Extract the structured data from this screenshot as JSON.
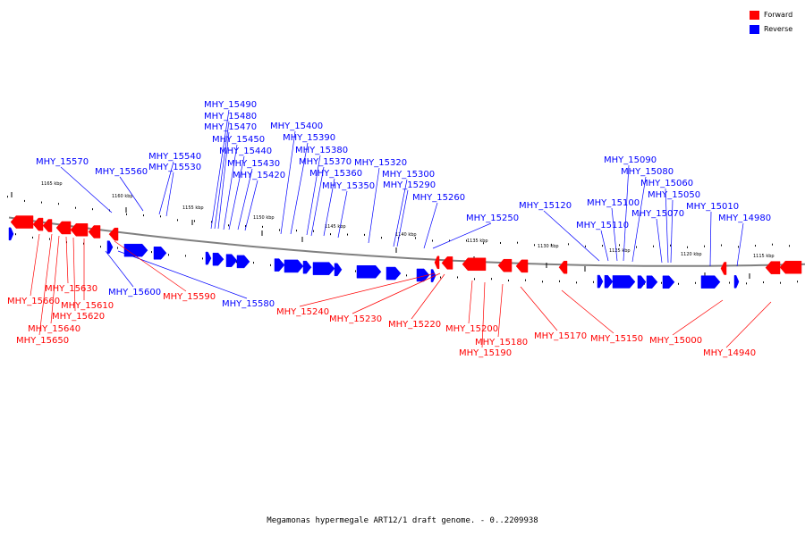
{
  "colors": {
    "forward": "#ff0000",
    "reverse": "#0000ff",
    "backbone": "#808080",
    "tick": "#000000"
  },
  "legend": [
    {
      "label": "Forward",
      "color": "#ff0000"
    },
    {
      "label": "Reverse",
      "color": "#0000ff"
    }
  ],
  "caption": "Megamonas hypermegale ART12/1 draft genome. - 0..2209938",
  "scale_labels": [
    "1165 kbp",
    "1160 kbp",
    "1155 kbp",
    "1150 kbp",
    "1145 kbp",
    "1140 kbp",
    "1135 kbp",
    "1130 kbp",
    "1125 kbp",
    "1120 kbp",
    "1115 kbp"
  ],
  "reverse_genes": [
    "MHY_15570",
    "MHY_15560",
    "MHY_15540",
    "MHY_15530",
    "MHY_15490",
    "MHY_15480",
    "MHY_15470",
    "MHY_15450",
    "MHY_15440",
    "MHY_15430",
    "MHY_15420",
    "MHY_15400",
    "MHY_15390",
    "MHY_15380",
    "MHY_15370",
    "MHY_15360",
    "MHY_15350",
    "MHY_15320",
    "MHY_15300",
    "MHY_15290",
    "MHY_15260",
    "MHY_15250",
    "MHY_15120",
    "MHY_15110",
    "MHY_15100",
    "MHY_15090",
    "MHY_15080",
    "MHY_15070",
    "MHY_15060",
    "MHY_15050",
    "MHY_15010",
    "MHY_14980",
    "MHY_15600",
    "MHY_15580"
  ],
  "forward_genes": [
    "MHY_15660",
    "MHY_15650",
    "MHY_15640",
    "MHY_15630",
    "MHY_15620",
    "MHY_15610",
    "MHY_15590",
    "MHY_15240",
    "MHY_15230",
    "MHY_15220",
    "MHY_15200",
    "MHY_15190",
    "MHY_15180",
    "MHY_15170",
    "MHY_15150",
    "MHY_15000",
    "MHY_14940"
  ]
}
